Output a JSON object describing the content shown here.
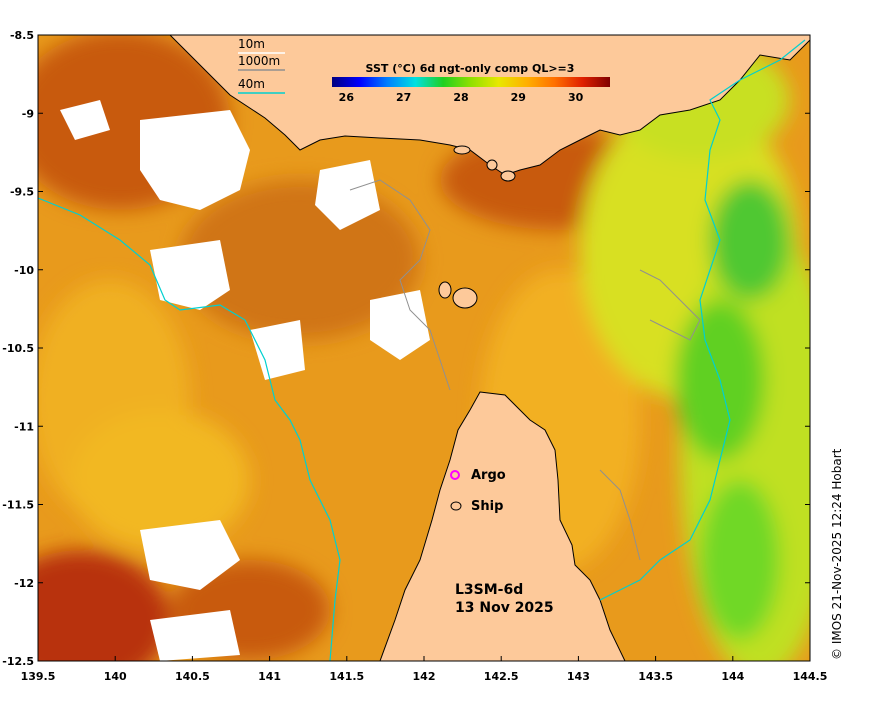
{
  "colorbar": {
    "title": "SST (°C) 6d ngt-only comp QL>=3",
    "ticks": [
      "26",
      "27",
      "28",
      "29",
      "30"
    ],
    "min": 25.75,
    "max": 30.6,
    "stops": [
      "#00007f",
      "#0000ff",
      "#0080ff",
      "#00e0e0",
      "#20d020",
      "#90e000",
      "#e8e800",
      "#ffb000",
      "#ff7000",
      "#e02000",
      "#800000"
    ]
  },
  "axes": {
    "x_ticks": [
      "139.5",
      "140",
      "140.5",
      "141",
      "141.5",
      "142",
      "142.5",
      "143",
      "143.5",
      "144",
      "144.5"
    ],
    "y_ticks": [
      "-8.5",
      "-9",
      "-9.5",
      "-10",
      "-10.5",
      "-11",
      "-11.5",
      "-12",
      "-12.5"
    ],
    "lon_range": [
      139.5,
      144.5
    ],
    "lat_range": [
      -12.5,
      -8.5
    ]
  },
  "depth_legend": {
    "items": [
      {
        "label": "10m",
        "color": "#ffffff"
      },
      {
        "label": "1000m",
        "color": "#909090"
      },
      {
        "label": "40m",
        "color": "#00d0d0"
      }
    ]
  },
  "marker_legend": {
    "argo_label": "Argo",
    "argo_color": "#ff00ff",
    "ship_label": "Ship",
    "ship_color": "#000000"
  },
  "product": {
    "line1": "L3SM-6d",
    "line2": "13 Nov 2025"
  },
  "credit": "© IMOS 21-Nov-2025 12:24 Hobart",
  "colors": {
    "land": "#fdc99a",
    "no_data": "#ffffff"
  }
}
